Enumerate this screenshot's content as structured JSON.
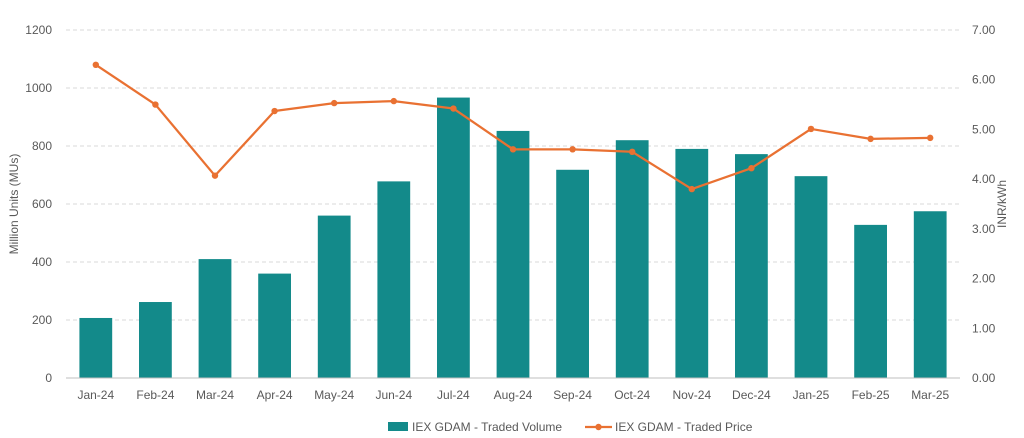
{
  "chart_data": {
    "type": "bar",
    "categories": [
      "Jan-24",
      "Feb-24",
      "Mar-24",
      "Apr-24",
      "May-24",
      "Jun-24",
      "Jul-24",
      "Aug-24",
      "Sep-24",
      "Oct-24",
      "Nov-24",
      "Dec-24",
      "Jan-25",
      "Feb-25",
      "Mar-25"
    ],
    "series": [
      {
        "name": "IEX GDAM - Traded Volume",
        "type": "bar",
        "axis": "left",
        "color": "#138a8a",
        "values": [
          207,
          262,
          410,
          360,
          560,
          678,
          967,
          852,
          718,
          820,
          790,
          772,
          696,
          528,
          575
        ]
      },
      {
        "name": "IEX GDAM - Traded Price",
        "type": "line",
        "axis": "right",
        "color": "#e97132",
        "values": [
          6.3,
          5.5,
          4.07,
          5.37,
          5.53,
          5.57,
          5.42,
          4.6,
          4.6,
          4.55,
          3.8,
          4.22,
          5.01,
          4.81,
          4.83
        ]
      }
    ],
    "ylabel": "Million Units (MUs)",
    "y2label": "INR/kWh",
    "ylim": [
      0,
      1200
    ],
    "y2lim": [
      0,
      7
    ],
    "yticks": [
      "0",
      "200",
      "400",
      "600",
      "800",
      "1000",
      "1200"
    ],
    "y2ticks": [
      "0.00",
      "1.00",
      "2.00",
      "3.00",
      "4.00",
      "5.00",
      "6.00",
      "7.00"
    ],
    "grid": true,
    "legend_position": "bottom"
  }
}
